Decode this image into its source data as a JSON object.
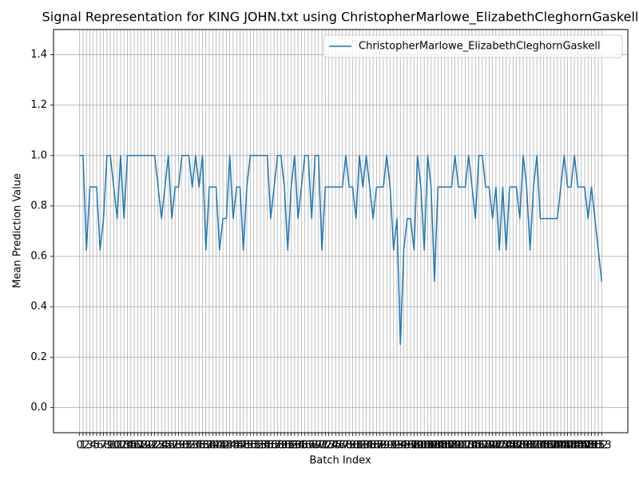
{
  "chart_data": {
    "type": "line",
    "title": "Signal Representation for KING JOHN.txt using ChristopherMarlowe_ElizabethCleghornGaskell",
    "xlabel": "Batch Index",
    "ylabel": "Mean Prediction Value",
    "x": [
      0,
      1,
      2,
      3,
      4,
      5,
      6,
      7,
      8,
      9,
      10,
      11,
      12,
      13,
      14,
      15,
      16,
      17,
      18,
      19,
      20,
      21,
      22,
      23,
      24,
      25,
      26,
      27,
      28,
      29,
      30,
      31,
      32,
      33,
      34,
      35,
      36,
      37,
      38,
      39,
      40,
      41,
      42,
      43,
      44,
      45,
      46,
      47,
      48,
      49,
      50,
      51,
      52,
      53,
      54,
      55,
      56,
      57,
      58,
      59,
      60,
      61,
      62,
      63,
      64,
      65,
      66,
      67,
      68,
      69,
      70,
      71,
      72,
      73,
      74,
      75,
      76,
      77,
      78,
      79,
      80,
      81,
      82,
      83,
      84,
      85,
      86,
      87,
      88,
      89,
      90,
      91,
      92,
      93,
      94,
      95,
      96,
      97,
      98,
      99,
      100,
      101,
      102,
      103,
      104,
      105,
      106,
      107,
      108,
      109,
      110,
      111,
      112,
      113,
      114,
      115,
      116,
      117,
      118,
      119,
      120,
      121,
      122,
      123,
      124,
      125,
      126,
      127,
      128,
      129,
      130,
      131,
      132,
      133,
      134,
      135,
      136,
      137,
      138,
      139,
      140,
      141,
      142,
      143,
      144,
      145,
      146,
      147,
      148,
      149,
      150,
      151,
      152,
      153
    ],
    "series": [
      {
        "name": "ChristopherMarlowe_ElizabethCleghornGaskell",
        "color": "#1f77b4",
        "values": [
          1,
          1,
          0.625,
          0.875,
          0.875,
          0.875,
          0.625,
          0.75,
          1,
          1,
          0.875,
          0.75,
          1,
          0.75,
          1,
          1,
          1,
          1,
          1,
          1,
          1,
          1,
          1,
          0.875,
          0.75,
          0.875,
          1,
          0.75,
          0.875,
          0.875,
          1,
          1,
          1,
          0.875,
          1,
          0.875,
          1,
          0.625,
          0.875,
          0.875,
          0.875,
          0.625,
          0.75,
          0.75,
          1,
          0.75,
          0.875,
          0.875,
          0.625,
          0.875,
          1,
          1,
          1,
          1,
          1,
          1,
          0.75,
          0.875,
          1,
          1,
          0.875,
          0.625,
          0.875,
          1,
          0.75,
          0.875,
          1,
          1,
          0.75,
          1,
          1,
          0.625,
          0.875,
          0.875,
          0.875,
          0.875,
          0.875,
          0.875,
          1,
          0.875,
          0.875,
          0.75,
          1,
          0.875,
          1,
          0.875,
          0.75,
          0.875,
          0.875,
          0.875,
          1,
          0.875,
          0.625,
          0.75,
          0.25,
          0.625,
          0.75,
          0.75,
          0.625,
          1,
          0.875,
          0.625,
          1,
          0.875,
          0.5,
          0.875,
          0.875,
          0.875,
          0.875,
          0.875,
          1,
          0.875,
          0.875,
          0.875,
          1,
          0.875,
          0.75,
          1,
          1,
          0.875,
          0.875,
          0.75,
          0.875,
          0.625,
          0.875,
          0.625,
          0.875,
          0.875,
          0.875,
          0.75,
          1,
          0.875,
          0.625,
          0.875,
          1,
          0.75,
          0.75,
          0.75,
          0.75,
          0.75,
          0.75,
          0.875,
          1,
          0.875,
          0.875,
          1,
          0.875,
          0.875,
          0.875,
          0.75,
          0.875,
          0.75,
          0.625,
          0.5
        ]
      }
    ],
    "xlim": [
      -7.65,
      160.65
    ],
    "xticks": [
      0,
      1,
      2,
      3,
      4,
      5,
      6,
      7,
      8,
      9,
      10,
      11,
      12,
      13,
      14,
      15,
      16,
      17,
      18,
      19,
      20,
      21,
      22,
      23,
      24,
      25,
      26,
      27,
      28,
      29,
      30,
      31,
      32,
      33,
      34,
      35,
      36,
      37,
      38,
      39,
      40,
      41,
      42,
      43,
      44,
      45,
      46,
      47,
      48,
      49,
      50,
      51,
      52,
      53,
      54,
      55,
      56,
      57,
      58,
      59,
      60,
      61,
      62,
      63,
      64,
      65,
      66,
      67,
      68,
      69,
      70,
      71,
      72,
      73,
      74,
      75,
      76,
      77,
      78,
      79,
      80,
      81,
      82,
      83,
      84,
      85,
      86,
      87,
      88,
      89,
      90,
      91,
      92,
      93,
      94,
      95,
      96,
      97,
      98,
      99,
      100,
      101,
      102,
      103,
      104,
      105,
      106,
      107,
      108,
      109,
      110,
      111,
      112,
      113,
      114,
      115,
      116,
      117,
      118,
      119,
      120,
      121,
      122,
      123,
      124,
      125,
      126,
      127,
      128,
      129,
      130,
      131,
      132,
      133,
      134,
      135,
      136,
      137,
      138,
      139,
      140,
      141,
      142,
      143,
      144,
      145,
      146,
      147,
      148,
      149,
      150,
      151,
      152,
      153
    ],
    "ylim": [
      -0.1,
      1.5
    ],
    "yticks": [
      {
        "value": 0,
        "label": "0.0"
      },
      {
        "value": 0.2,
        "label": "0.2"
      },
      {
        "value": 0.4,
        "label": "0.4"
      },
      {
        "value": 0.6,
        "label": "0.6"
      },
      {
        "value": 0.8,
        "label": "0.8"
      },
      {
        "value": 1,
        "label": "1.0"
      },
      {
        "value": 1.2,
        "label": "1.2"
      },
      {
        "value": 1.4,
        "label": "1.4"
      }
    ],
    "grid": true,
    "legend": "upper right"
  }
}
